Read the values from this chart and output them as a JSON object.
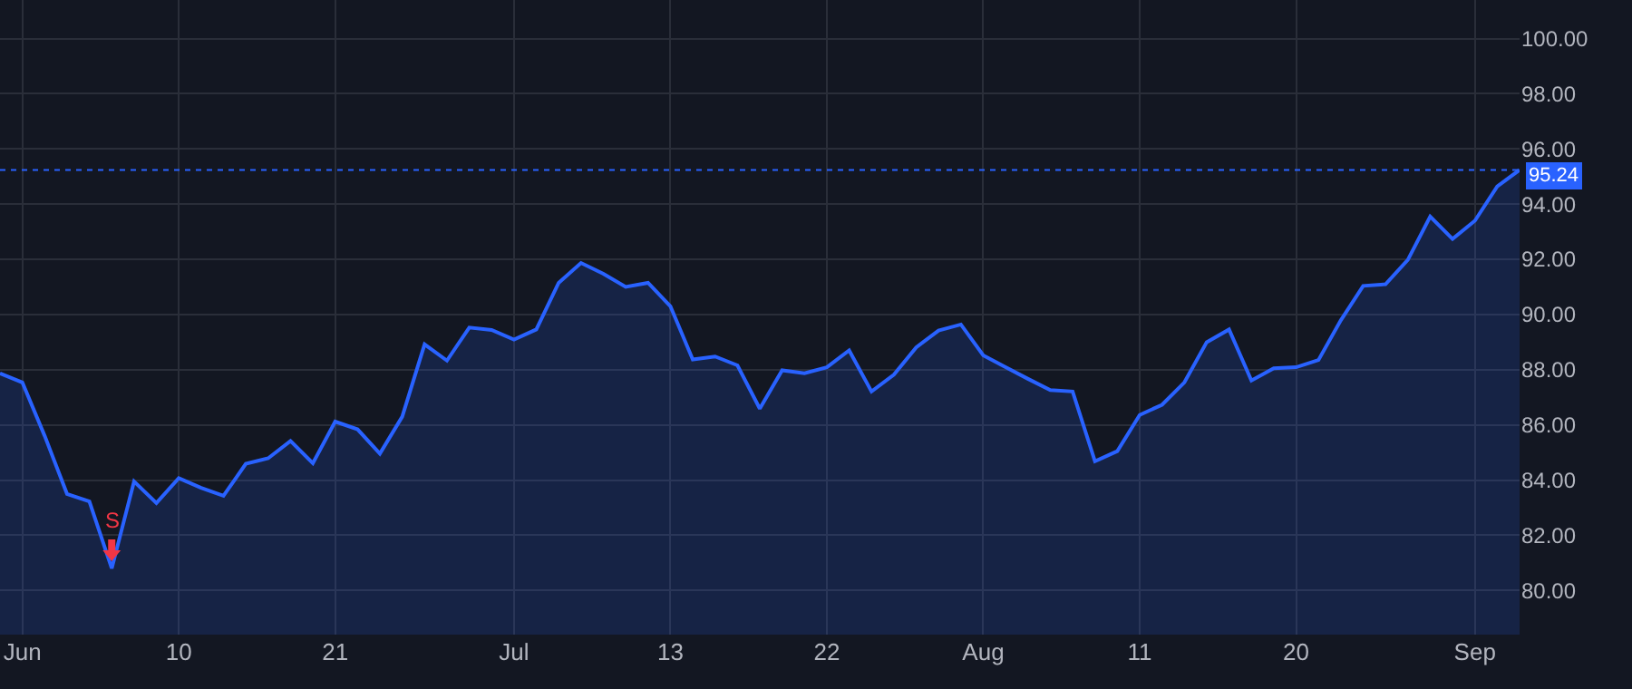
{
  "chart_data": {
    "type": "area",
    "categories": [
      null,
      "Jun",
      null,
      null,
      null,
      null,
      null,
      null,
      "10",
      null,
      null,
      null,
      null,
      null,
      null,
      "21",
      null,
      null,
      null,
      null,
      null,
      null,
      null,
      "Jul",
      null,
      null,
      null,
      null,
      null,
      null,
      "13",
      null,
      null,
      null,
      null,
      null,
      null,
      "22",
      null,
      null,
      null,
      null,
      null,
      null,
      "Aug",
      null,
      null,
      null,
      null,
      null,
      null,
      "11",
      null,
      null,
      null,
      null,
      null,
      null,
      "20",
      null,
      null,
      null,
      null,
      null,
      null,
      null,
      "Sep",
      null,
      null
    ],
    "series": [
      {
        "color": "#2962ff",
        "values": [
          87.87,
          87.54,
          85.6,
          83.5,
          83.23,
          80.8,
          83.95,
          83.17,
          84.07,
          83.72,
          83.43,
          84.59,
          84.79,
          85.42,
          84.61,
          86.12,
          85.84,
          84.96,
          86.3,
          88.92,
          88.33,
          89.53,
          89.44,
          89.09,
          89.46,
          91.15,
          91.87,
          91.48,
          91.0,
          91.15,
          90.3,
          88.37,
          88.48,
          88.16,
          86.59,
          87.98,
          87.87,
          88.09,
          88.7,
          87.21,
          87.82,
          88.81,
          89.42,
          89.64,
          88.52,
          88.09,
          87.67,
          87.26,
          87.21,
          84.68,
          85.05,
          86.36,
          86.73,
          87.54,
          89.0,
          89.46,
          87.61,
          88.05,
          88.09,
          88.35,
          89.79,
          91.04,
          91.1,
          91.98,
          93.55,
          92.74,
          93.4,
          94.64,
          95.24
        ]
      }
    ],
    "ylim": [
      78.4,
      101.4
    ],
    "yticks": [
      {
        "value": 80,
        "label": "80.00"
      },
      {
        "value": 82,
        "label": "82.00"
      },
      {
        "value": 84,
        "label": "84.00"
      },
      {
        "value": 86,
        "label": "86.00"
      },
      {
        "value": 88,
        "label": "88.00"
      },
      {
        "value": 90,
        "label": "90.00"
      },
      {
        "value": 92,
        "label": "92.00"
      },
      {
        "value": 94,
        "label": "94.00"
      },
      {
        "value": 96,
        "label": "96.00"
      },
      {
        "value": 98,
        "label": "98.00"
      },
      {
        "value": 100,
        "label": "100.00"
      }
    ],
    "ref_lines": [
      {
        "axis": "y",
        "value": 95.24,
        "label": "95.24",
        "color": "#2962ff",
        "line_style": "dotted"
      }
    ],
    "annotations": [
      {
        "text": "S",
        "y": 80.8
      }
    ],
    "grid": true,
    "marker": "none",
    "line_style": "solid"
  }
}
